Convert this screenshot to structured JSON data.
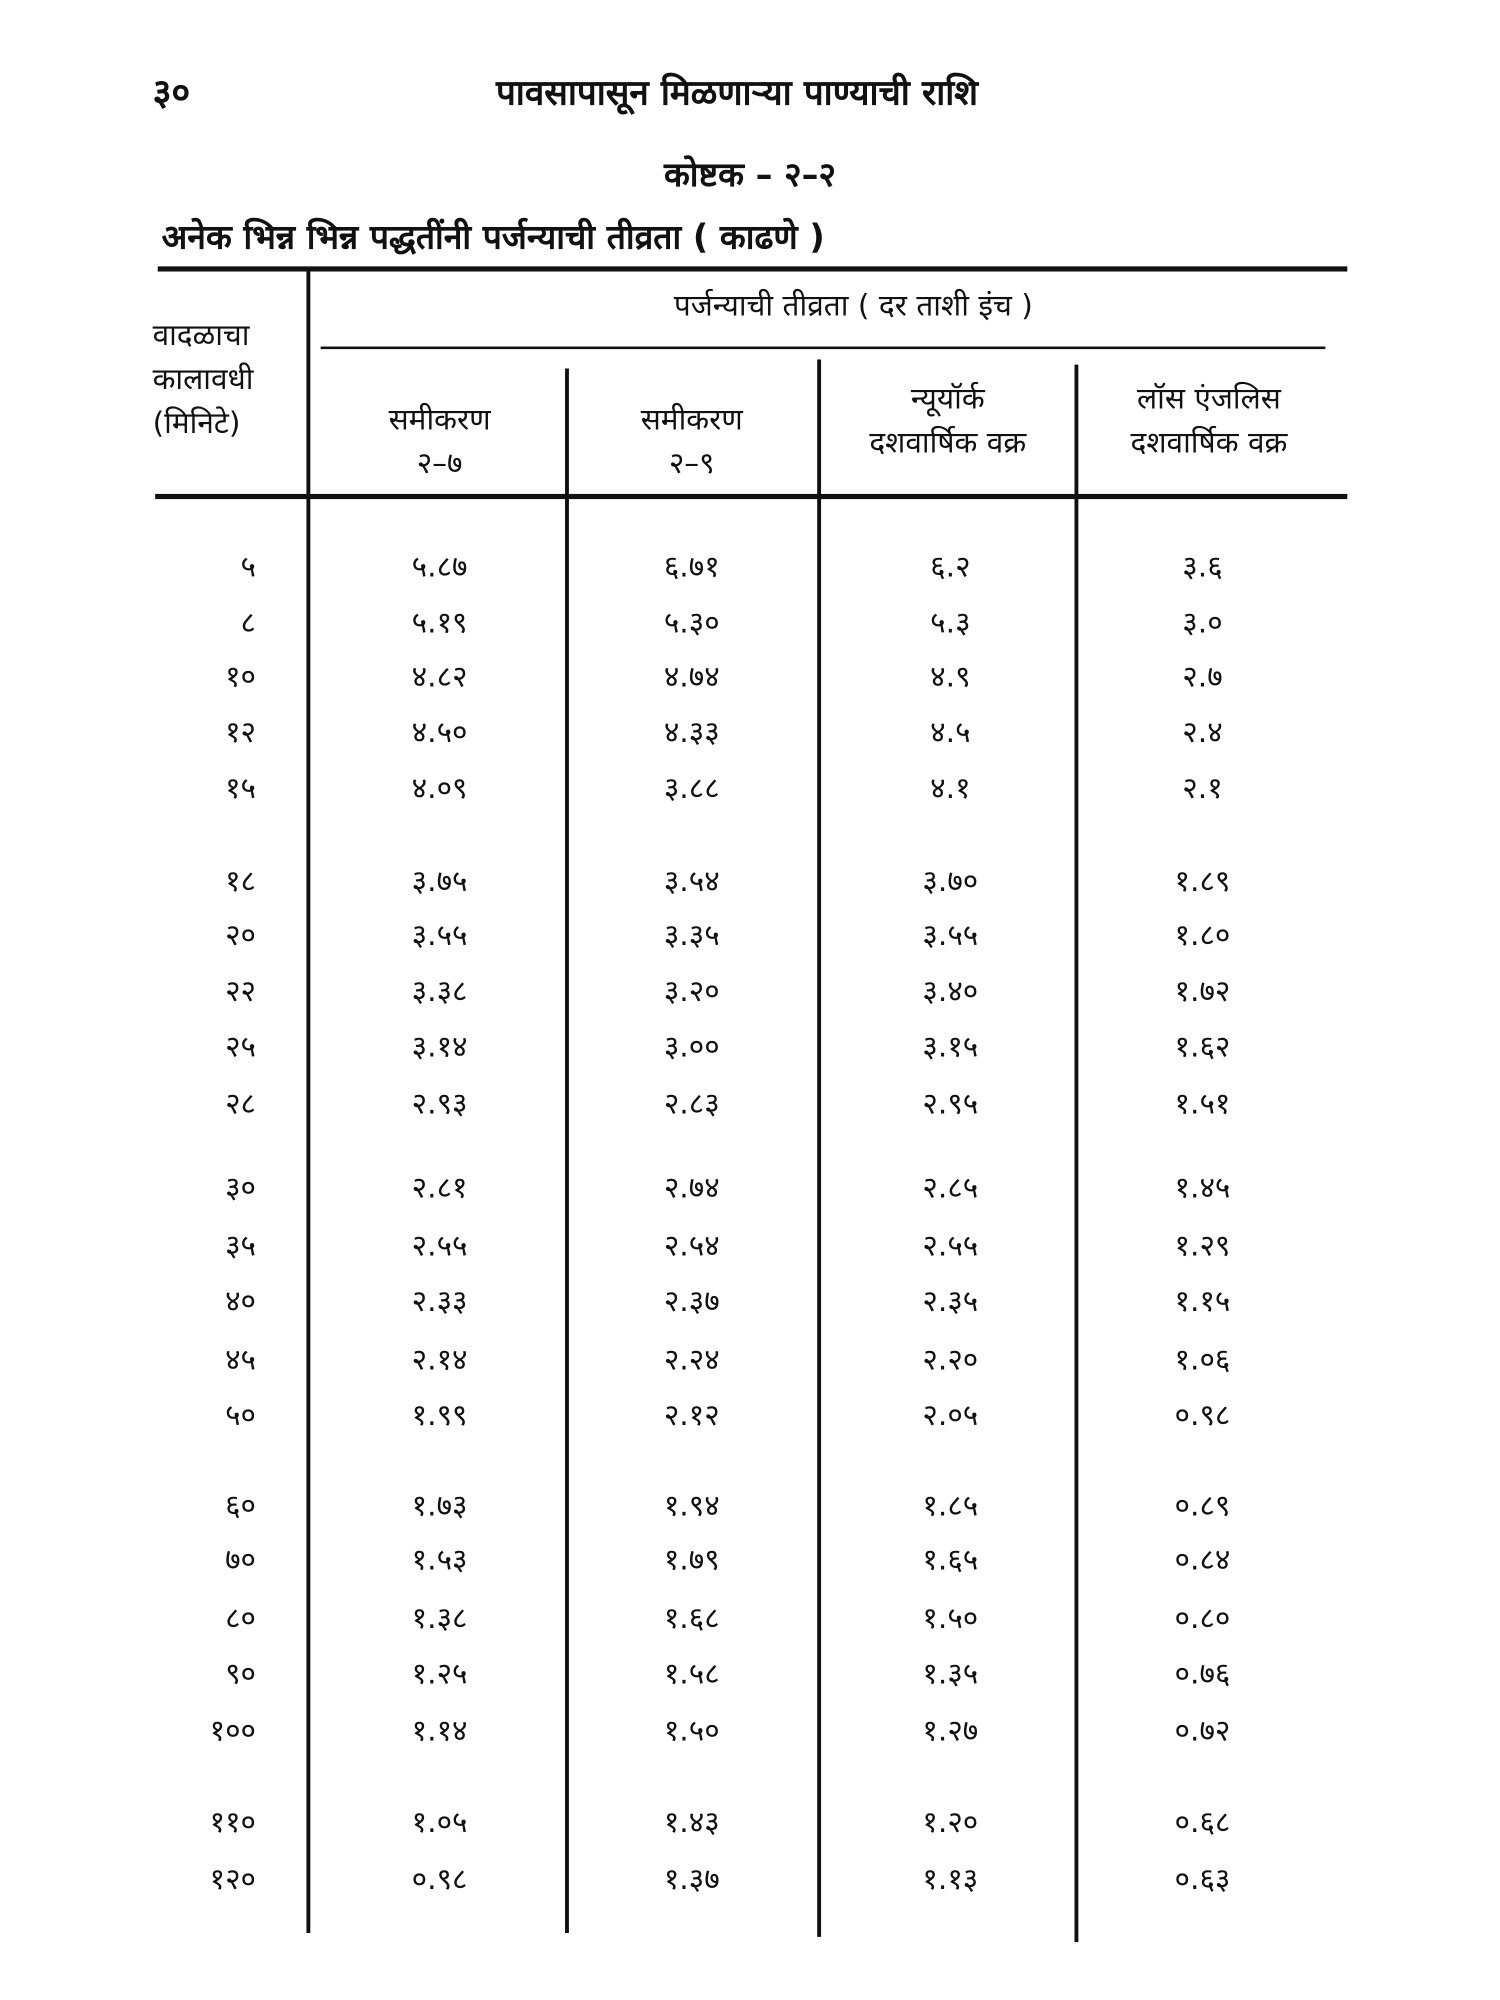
{
  "page_number": "३०",
  "running_title": "पावसापासून मिळणाऱ्या पाण्याची राशि",
  "table_number": "कोष्टक – २–२",
  "table_caption": "अनेक भिन्न भिन्न पद्धतींनी पर्जन्याची तीव्रता ( काढणे )",
  "table": {
    "row_header": [
      "वादळाचा",
      "कालावधी",
      "(मिनिटे)"
    ],
    "group_header": "पर्जन्याची तीव्रता ( दर ताशी इंच )",
    "columns": [
      [
        "समीकरण",
        "२–७"
      ],
      [
        "समीकरण",
        "२–९"
      ],
      [
        "न्यूयॉर्क",
        "दशवार्षिक वक्र"
      ],
      [
        "लॉस एंजलिस",
        "दशवार्षिक वक्र"
      ]
    ],
    "rows": [
      [
        "५",
        "५.८७",
        "६.७१",
        "६.२",
        "३.६"
      ],
      [
        "८",
        "५.१९",
        "५.३०",
        "५.३",
        "३.०"
      ],
      [
        "१०",
        "४.८२",
        "४.७४",
        "४.९",
        "२.७"
      ],
      [
        "१२",
        "४.५०",
        "४.३३",
        "४.५",
        "२.४"
      ],
      [
        "१५",
        "४.०९",
        "३.८८",
        "४.१",
        "२.१"
      ],
      [
        "१८",
        "३.७५",
        "३.५४",
        "३.७०",
        "१.८९"
      ],
      [
        "२०",
        "३.५५",
        "३.३५",
        "३.५५",
        "१.८०"
      ],
      [
        "२२",
        "३.३८",
        "३.२०",
        "३.४०",
        "१.७२"
      ],
      [
        "२५",
        "३.१४",
        "३.००",
        "३.१५",
        "१.६२"
      ],
      [
        "२८",
        "२.९३",
        "२.८३",
        "२.९५",
        "१.५१"
      ],
      [
        "३०",
        "२.८१",
        "२.७४",
        "२.८५",
        "१.४५"
      ],
      [
        "३५",
        "२.५५",
        "२.५४",
        "२.५५",
        "१.२९"
      ],
      [
        "४०",
        "२.३३",
        "२.३७",
        "२.३५",
        "१.१५"
      ],
      [
        "४५",
        "२.१४",
        "२.२४",
        "२.२०",
        "१.०६"
      ],
      [
        "५०",
        "१.९९",
        "२.१२",
        "२.०५",
        "०.९८"
      ],
      [
        "६०",
        "१.७३",
        "१.९४",
        "१.८५",
        "०.८९"
      ],
      [
        "७०",
        "१.५३",
        "१.७९",
        "१.६५",
        "०.८४"
      ],
      [
        "८०",
        "१.३८",
        "१.६८",
        "१.५०",
        "०.८०"
      ],
      [
        "९०",
        "१.२५",
        "१.५८",
        "१.३५",
        "०.७६"
      ],
      [
        "१००",
        "१.१४",
        "१.५०",
        "१.२७",
        "०.७२"
      ],
      [
        "११०",
        "१.०५",
        "१.४३",
        "१.२०",
        "०.६८"
      ],
      [
        "१२०",
        "०.९८",
        "१.३७",
        "१.१३",
        "०.६३"
      ]
    ]
  }
}
